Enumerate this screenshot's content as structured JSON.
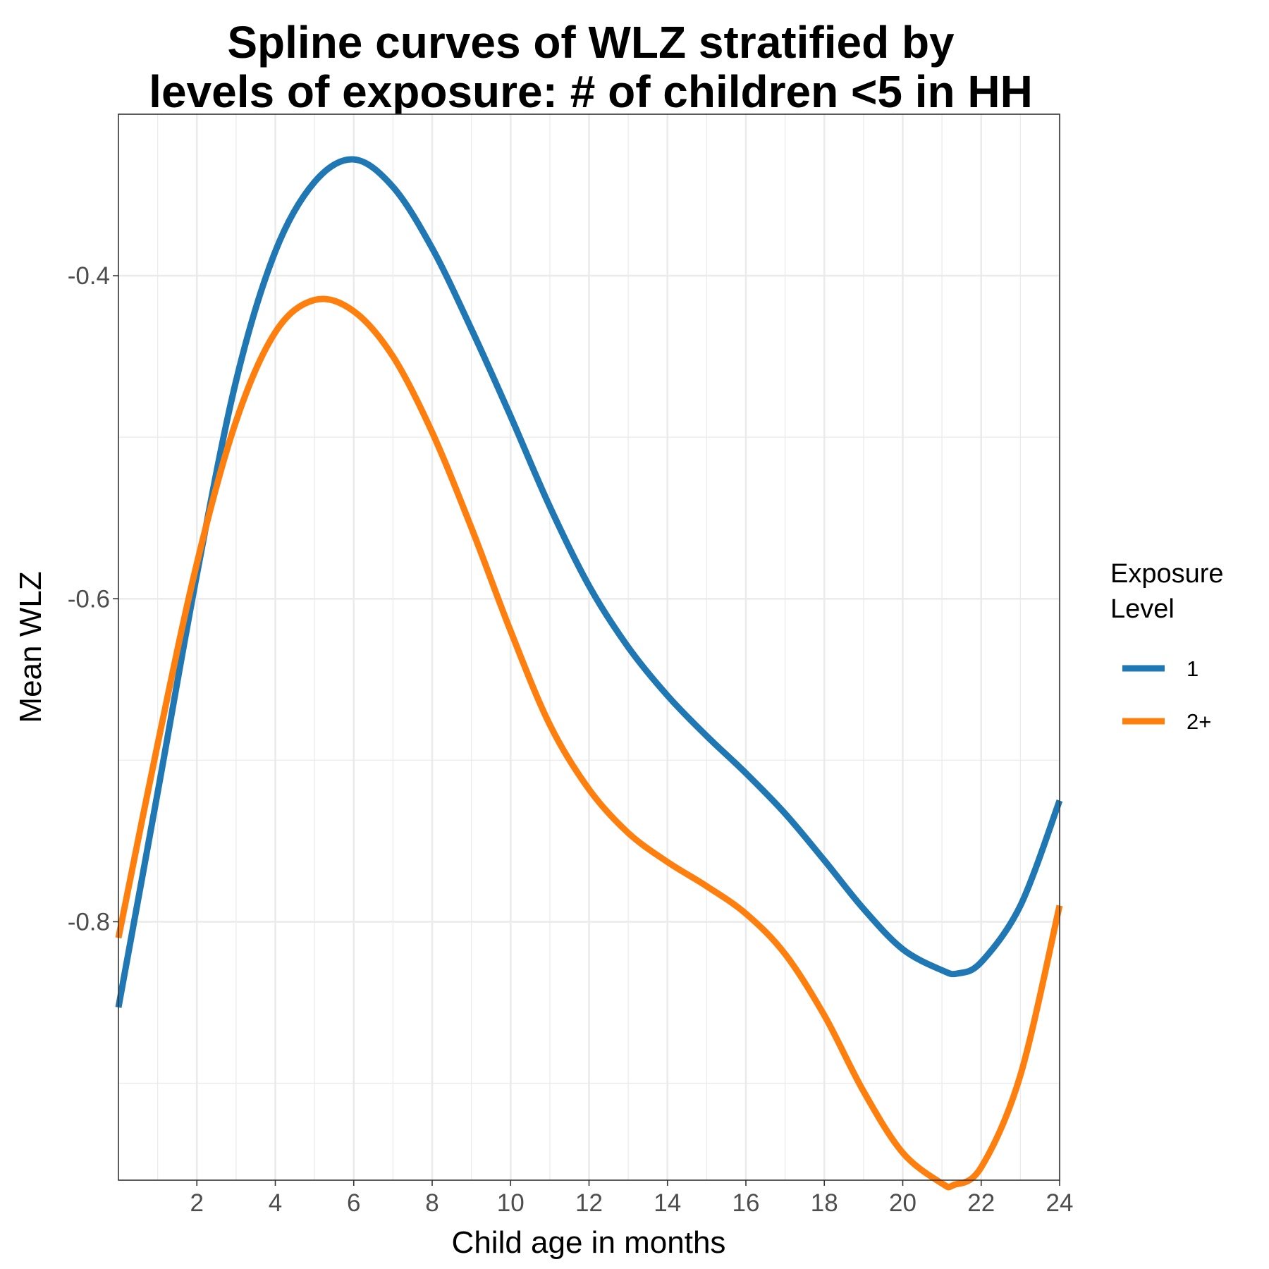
{
  "chart_data": {
    "type": "line",
    "title": [
      "Spline curves of WLZ stratified by",
      "levels of exposure: # of children <5 in HH"
    ],
    "xlabel": "Child age in months",
    "ylabel": "Mean WLZ",
    "xlim": [
      0,
      24
    ],
    "ylim": [
      -0.96,
      -0.3
    ],
    "x_ticks": [
      2,
      4,
      6,
      8,
      10,
      12,
      14,
      16,
      18,
      20,
      22,
      24
    ],
    "x_tick_labels": [
      "2",
      "4",
      "6",
      "8",
      "10",
      "12",
      "14",
      "16",
      "18",
      "20",
      "22",
      "24"
    ],
    "x_minor_ticks": [
      1,
      3,
      5,
      7,
      9,
      11,
      13,
      15,
      17,
      19,
      21,
      23
    ],
    "y_ticks": [
      -0.8,
      -0.6,
      -0.4
    ],
    "y_tick_labels": [
      "-0.8",
      "-0.6",
      "-0.4"
    ],
    "y_minor_ticks": [
      -0.9,
      -0.7,
      -0.5
    ],
    "grid": true,
    "legend": {
      "title": [
        "Exposure",
        "Level"
      ],
      "position": "right"
    },
    "series": [
      {
        "name": "1",
        "color": "#1f77b4",
        "points": [
          [
            0,
            -0.853
          ],
          [
            1,
            -0.72
          ],
          [
            2,
            -0.585
          ],
          [
            3,
            -0.465
          ],
          [
            4,
            -0.385
          ],
          [
            5,
            -0.342
          ],
          [
            6,
            -0.328
          ],
          [
            7,
            -0.345
          ],
          [
            8,
            -0.383
          ],
          [
            9,
            -0.433
          ],
          [
            10,
            -0.487
          ],
          [
            11,
            -0.543
          ],
          [
            12,
            -0.592
          ],
          [
            13,
            -0.63
          ],
          [
            14,
            -0.66
          ],
          [
            15,
            -0.685
          ],
          [
            16,
            -0.708
          ],
          [
            17,
            -0.733
          ],
          [
            18,
            -0.762
          ],
          [
            19,
            -0.792
          ],
          [
            20,
            -0.817
          ],
          [
            21,
            -0.83
          ],
          [
            21.4,
            -0.832
          ],
          [
            22,
            -0.825
          ],
          [
            23,
            -0.79
          ],
          [
            24,
            -0.725
          ]
        ]
      },
      {
        "name": "2+",
        "color": "#ff7f0e",
        "points": [
          [
            0,
            -0.81
          ],
          [
            1,
            -0.69
          ],
          [
            2,
            -0.578
          ],
          [
            3,
            -0.49
          ],
          [
            4,
            -0.435
          ],
          [
            5,
            -0.415
          ],
          [
            6,
            -0.422
          ],
          [
            7,
            -0.45
          ],
          [
            8,
            -0.497
          ],
          [
            9,
            -0.556
          ],
          [
            10,
            -0.62
          ],
          [
            11,
            -0.678
          ],
          [
            12,
            -0.718
          ],
          [
            13,
            -0.745
          ],
          [
            14,
            -0.763
          ],
          [
            15,
            -0.778
          ],
          [
            16,
            -0.795
          ],
          [
            17,
            -0.82
          ],
          [
            18,
            -0.858
          ],
          [
            19,
            -0.905
          ],
          [
            20,
            -0.943
          ],
          [
            21,
            -0.962
          ],
          [
            21.3,
            -0.963
          ],
          [
            22,
            -0.952
          ],
          [
            23,
            -0.895
          ],
          [
            24,
            -0.79
          ]
        ]
      }
    ]
  }
}
